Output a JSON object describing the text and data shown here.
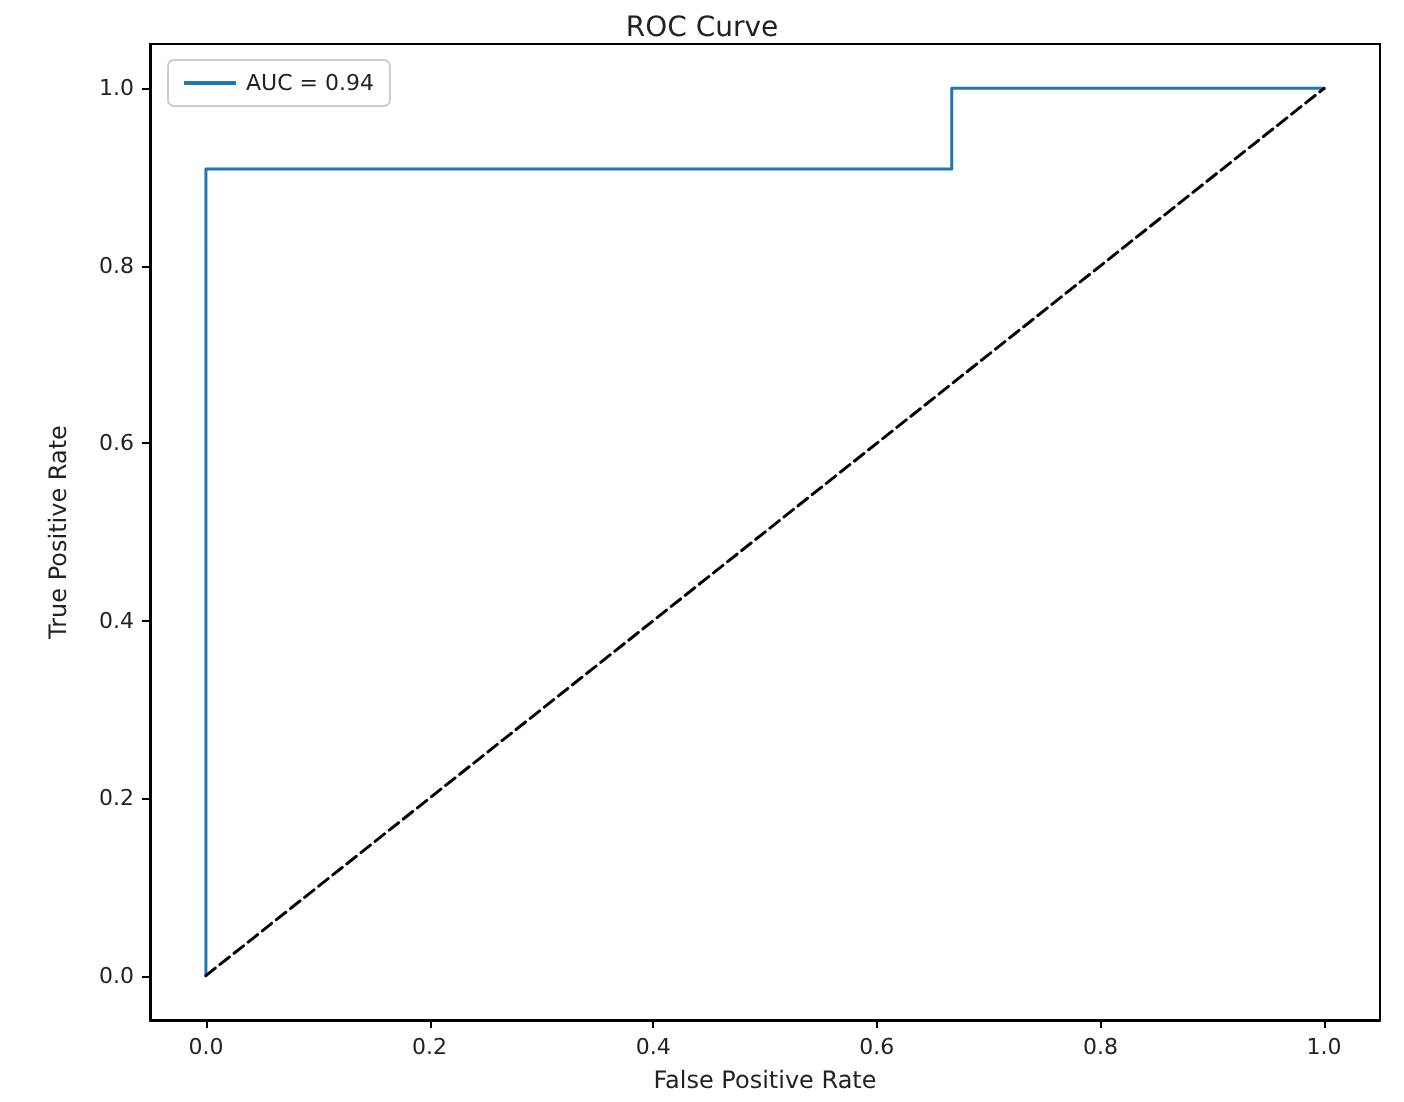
{
  "chart_data": {
    "type": "line",
    "title": "ROC Curve",
    "xlabel": "False Positive Rate",
    "ylabel": "True Positive Rate",
    "series": [
      {
        "name": "AUC = 0.94",
        "color": "#1f77b4",
        "x": [
          0,
          0,
          0.667,
          0.667,
          1
        ],
        "values": [
          0,
          0.909,
          0.909,
          1,
          1
        ],
        "line_style": "solid"
      },
      {
        "color": "#000000",
        "x": [
          0,
          1
        ],
        "values": [
          0,
          1
        ],
        "line_style": "dashed"
      }
    ],
    "xlim": [
      -0.05,
      1.05
    ],
    "ylim": [
      -0.05,
      1.05
    ],
    "xticks": [
      {
        "value": 0,
        "label": "0.0"
      },
      {
        "value": 0.2,
        "label": "0.2"
      },
      {
        "value": 0.4,
        "label": "0.4"
      },
      {
        "value": 0.6,
        "label": "0.6"
      },
      {
        "value": 0.8,
        "label": "0.8"
      },
      {
        "value": 1,
        "label": "1.0"
      }
    ],
    "yticks": [
      {
        "value": 0,
        "label": "0.0"
      },
      {
        "value": 0.2,
        "label": "0.2"
      },
      {
        "value": 0.4,
        "label": "0.4"
      },
      {
        "value": 0.6,
        "label": "0.6"
      },
      {
        "value": 0.8,
        "label": "0.8"
      },
      {
        "value": 1,
        "label": "1.0"
      }
    ],
    "grid": false,
    "legend": "top left",
    "marker": "none"
  }
}
